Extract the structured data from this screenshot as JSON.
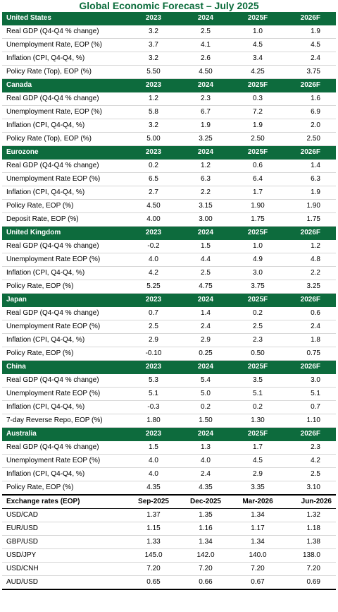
{
  "title": "Global Economic Forecast – July 2025",
  "sections": [
    {
      "name": "United States",
      "headers": [
        "2023",
        "2024",
        "2025F",
        "2026F"
      ],
      "rows": [
        {
          "label": "Real GDP (Q4-Q4 % change)",
          "values": [
            "3.2",
            "2.5",
            "1.0",
            "1.9"
          ]
        },
        {
          "label": "Unemployment Rate, EOP (%)",
          "values": [
            "3.7",
            "4.1",
            "4.5",
            "4.5"
          ]
        },
        {
          "label": "Inflation (CPI, Q4-Q4, %)",
          "values": [
            "3.2",
            "2.6",
            "3.4",
            "2.4"
          ]
        },
        {
          "label": "Policy Rate (Top), EOP (%)",
          "values": [
            "5.50",
            "4.50",
            "4.25",
            "3.75"
          ]
        }
      ]
    },
    {
      "name": "Canada",
      "headers": [
        "2023",
        "2024",
        "2025F",
        "2026F"
      ],
      "rows": [
        {
          "label": "Real GDP (Q4-Q4 % change)",
          "values": [
            "1.2",
            "2.3",
            "0.3",
            "1.6"
          ]
        },
        {
          "label": "Unemployment Rate, EOP (%)",
          "values": [
            "5.8",
            "6.7",
            "7.2",
            "6.9"
          ]
        },
        {
          "label": "Inflation (CPI, Q4-Q4, %)",
          "values": [
            "3.2",
            "1.9",
            "1.9",
            "2.0"
          ]
        },
        {
          "label": "Policy Rate (Top), EOP (%)",
          "values": [
            "5.00",
            "3.25",
            "2.50",
            "2.50"
          ]
        }
      ]
    },
    {
      "name": "Eurozone",
      "headers": [
        "2023",
        "2024",
        "2025F",
        "2026F"
      ],
      "rows": [
        {
          "label": "Real GDP (Q4-Q4 % change)",
          "values": [
            "0.2",
            "1.2",
            "0.6",
            "1.4"
          ]
        },
        {
          "label": "Unemployment Rate EOP (%)",
          "values": [
            "6.5",
            "6.3",
            "6.4",
            "6.3"
          ]
        },
        {
          "label": "Inflation (CPI, Q4-Q4, %)",
          "values": [
            "2.7",
            "2.2",
            "1.7",
            "1.9"
          ]
        },
        {
          "label": "Policy Rate, EOP (%)",
          "values": [
            "4.50",
            "3.15",
            "1.90",
            "1.90"
          ]
        },
        {
          "label": "Deposit Rate, EOP (%)",
          "values": [
            "4.00",
            "3.00",
            "1.75",
            "1.75"
          ]
        }
      ]
    },
    {
      "name": "United Kingdom",
      "headers": [
        "2023",
        "2024",
        "2025F",
        "2026F"
      ],
      "rows": [
        {
          "label": "Real GDP (Q4-Q4 % change)",
          "values": [
            "-0.2",
            "1.5",
            "1.0",
            "1.2"
          ]
        },
        {
          "label": "Unemployment Rate EOP (%)",
          "values": [
            "4.0",
            "4.4",
            "4.9",
            "4.8"
          ]
        },
        {
          "label": "Inflation (CPI, Q4-Q4, %)",
          "values": [
            "4.2",
            "2.5",
            "3.0",
            "2.2"
          ]
        },
        {
          "label": "Policy Rate, EOP (%)",
          "values": [
            "5.25",
            "4.75",
            "3.75",
            "3.25"
          ]
        }
      ]
    },
    {
      "name": "Japan",
      "headers": [
        "2023",
        "2024",
        "2025F",
        "2026F"
      ],
      "rows": [
        {
          "label": "Real GDP (Q4-Q4 % change)",
          "values": [
            "0.7",
            "1.4",
            "0.2",
            "0.6"
          ]
        },
        {
          "label": "Unemployment Rate EOP (%)",
          "values": [
            "2.5",
            "2.4",
            "2.5",
            "2.4"
          ]
        },
        {
          "label": "Inflation (CPI, Q4-Q4, %)",
          "values": [
            "2.9",
            "2.9",
            "2.3",
            "1.8"
          ]
        },
        {
          "label": "Policy Rate, EOP (%)",
          "values": [
            "-0.10",
            "0.25",
            "0.50",
            "0.75"
          ]
        }
      ]
    },
    {
      "name": "China",
      "headers": [
        "2023",
        "2024",
        "2025F",
        "2026F"
      ],
      "rows": [
        {
          "label": "Real GDP (Q4-Q4 % change)",
          "values": [
            "5.3",
            "5.4",
            "3.5",
            "3.0"
          ]
        },
        {
          "label": "Unemployment Rate EOP (%)",
          "values": [
            "5.1",
            "5.0",
            "5.1",
            "5.1"
          ]
        },
        {
          "label": "Inflation (CPI, Q4-Q4, %)",
          "values": [
            "-0.3",
            "0.2",
            "0.2",
            "0.7"
          ]
        },
        {
          "label": "7-day Reverse Repo, EOP (%)",
          "values": [
            "1.80",
            "1.50",
            "1.30",
            "1.10"
          ]
        }
      ]
    },
    {
      "name": "Australia",
      "headers": [
        "2023",
        "2024",
        "2025F",
        "2026F"
      ],
      "rows": [
        {
          "label": "Real GDP (Q4-Q4 % change)",
          "values": [
            "1.5",
            "1.3",
            "1.7",
            "2.3"
          ]
        },
        {
          "label": "Unemployment Rate EOP (%)",
          "values": [
            "4.0",
            "4.0",
            "4.5",
            "4.2"
          ]
        },
        {
          "label": "Inflation (CPI, Q4-Q4, %)",
          "values": [
            "4.0",
            "2.4",
            "2.9",
            "2.5"
          ]
        },
        {
          "label": "Policy Rate, EOP (%)",
          "values": [
            "4.35",
            "4.35",
            "3.35",
            "3.10"
          ]
        }
      ]
    }
  ],
  "fx": {
    "name": "Exchange rates (EOP)",
    "headers": [
      "Sep-2025",
      "Dec-2025",
      "Mar-2026",
      "Jun-2026"
    ],
    "rows": [
      {
        "label": "USD/CAD",
        "values": [
          "1.37",
          "1.35",
          "1.34",
          "1.32"
        ]
      },
      {
        "label": "EUR/USD",
        "values": [
          "1.15",
          "1.16",
          "1.17",
          "1.18"
        ]
      },
      {
        "label": "GBP/USD",
        "values": [
          "1.33",
          "1.34",
          "1.34",
          "1.38"
        ]
      },
      {
        "label": "USD/JPY",
        "values": [
          "145.0",
          "142.0",
          "140.0",
          "138.0"
        ]
      },
      {
        "label": "USD/CNH",
        "values": [
          "7.20",
          "7.20",
          "7.20",
          "7.20"
        ]
      },
      {
        "label": "AUD/USD",
        "values": [
          "0.65",
          "0.66",
          "0.67",
          "0.69"
        ]
      }
    ]
  }
}
